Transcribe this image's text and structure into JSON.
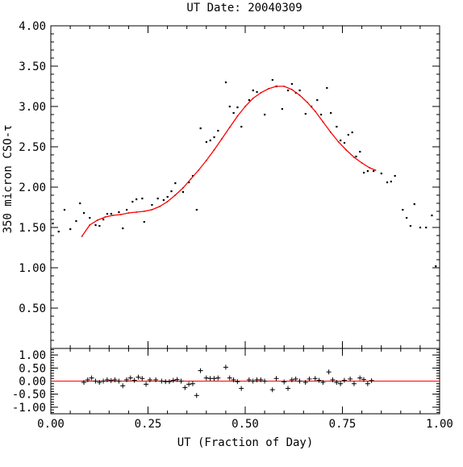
{
  "chart_data": [
    {
      "type": "scatter",
      "title": "UT Date: 20040309",
      "xlabel": "",
      "ylabel": "350 micron CSO-τ",
      "xlim": [
        0.0,
        1.0
      ],
      "ylim": [
        0.0,
        4.0
      ],
      "y_ticks": [
        "0.50",
        "1.00",
        "1.50",
        "2.00",
        "2.50",
        "3.00",
        "3.50",
        "4.00"
      ],
      "grid": false,
      "colors": {
        "points": "#000000",
        "fit": "#ff0000"
      },
      "series": [
        {
          "kind": "points",
          "x": [
            0.005,
            0.02,
            0.035,
            0.05,
            0.065,
            0.075,
            0.085,
            0.1,
            0.115,
            0.125,
            0.135,
            0.145,
            0.155,
            0.175,
            0.185,
            0.195,
            0.21,
            0.22,
            0.235,
            0.24,
            0.26,
            0.275,
            0.29,
            0.3,
            0.31,
            0.32,
            0.34,
            0.355,
            0.365,
            0.375,
            0.385,
            0.4,
            0.41,
            0.42,
            0.43,
            0.45,
            0.46,
            0.47,
            0.48,
            0.49,
            0.51,
            0.52,
            0.53,
            0.55,
            0.57,
            0.58,
            0.595,
            0.61,
            0.62,
            0.63,
            0.64,
            0.655,
            0.67,
            0.685,
            0.695,
            0.71,
            0.72,
            0.735,
            0.745,
            0.755,
            0.765,
            0.775,
            0.785,
            0.795,
            0.805,
            0.815,
            0.83,
            0.85,
            0.865,
            0.875,
            0.885,
            0.905,
            0.915,
            0.925,
            0.935,
            0.95,
            0.965,
            0.98,
            0.99
          ],
          "y": [
            1.55,
            1.45,
            1.72,
            1.48,
            1.58,
            1.8,
            1.68,
            1.62,
            1.53,
            1.52,
            1.6,
            1.67,
            1.67,
            1.69,
            1.49,
            1.72,
            1.82,
            1.85,
            1.86,
            1.57,
            1.78,
            1.86,
            1.84,
            1.88,
            1.95,
            2.05,
            1.94,
            2.06,
            2.14,
            1.72,
            2.73,
            2.56,
            2.58,
            2.62,
            2.7,
            3.3,
            3.0,
            2.92,
            2.99,
            2.75,
            3.08,
            3.2,
            3.18,
            2.9,
            3.33,
            3.25,
            2.97,
            3.2,
            3.28,
            3.17,
            3.2,
            2.91,
            3.0,
            3.08,
            2.9,
            3.23,
            2.92,
            2.75,
            2.58,
            2.55,
            2.65,
            2.68,
            2.38,
            2.44,
            2.18,
            2.2,
            2.2,
            2.17,
            2.06,
            2.07,
            2.14,
            1.72,
            1.62,
            1.52,
            1.79,
            1.5,
            1.5,
            1.65,
            1.02
          ]
        },
        {
          "kind": "fit-line",
          "x": [
            0.08,
            0.1,
            0.12,
            0.14,
            0.16,
            0.18,
            0.2,
            0.22,
            0.24,
            0.26,
            0.28,
            0.3,
            0.32,
            0.34,
            0.36,
            0.38,
            0.4,
            0.42,
            0.44,
            0.46,
            0.48,
            0.5,
            0.52,
            0.54,
            0.56,
            0.58,
            0.6,
            0.62,
            0.64,
            0.66,
            0.68,
            0.7,
            0.72,
            0.74,
            0.76,
            0.78,
            0.8,
            0.82,
            0.835
          ],
          "y": [
            1.39,
            1.53,
            1.59,
            1.63,
            1.65,
            1.66,
            1.68,
            1.69,
            1.7,
            1.72,
            1.76,
            1.82,
            1.9,
            1.99,
            2.1,
            2.21,
            2.33,
            2.46,
            2.6,
            2.74,
            2.88,
            3.0,
            3.1,
            3.17,
            3.22,
            3.25,
            3.25,
            3.21,
            3.14,
            3.05,
            2.94,
            2.81,
            2.68,
            2.56,
            2.46,
            2.37,
            2.3,
            2.24,
            2.21
          ]
        }
      ]
    },
    {
      "type": "scatter",
      "title": "",
      "xlabel": "UT (Fraction of Day)",
      "ylabel": "",
      "xlim": [
        0.0,
        1.0
      ],
      "ylim": [
        -1.25,
        1.25
      ],
      "x_ticks": [
        "0.00",
        "0.25",
        "0.50",
        "0.75",
        "1.00"
      ],
      "y_ticks": [
        "-1.00",
        "-0.50",
        "0.00",
        "0.50",
        "1.00"
      ],
      "grid": false,
      "colors": {
        "points": "#000000",
        "zero_line": "#ff0000"
      },
      "series": [
        {
          "kind": "residuals",
          "x": [
            0.085,
            0.095,
            0.105,
            0.115,
            0.125,
            0.135,
            0.145,
            0.155,
            0.165,
            0.175,
            0.185,
            0.195,
            0.205,
            0.215,
            0.225,
            0.235,
            0.245,
            0.255,
            0.27,
            0.285,
            0.295,
            0.305,
            0.315,
            0.325,
            0.335,
            0.345,
            0.355,
            0.365,
            0.375,
            0.385,
            0.4,
            0.41,
            0.42,
            0.43,
            0.45,
            0.46,
            0.47,
            0.48,
            0.49,
            0.51,
            0.52,
            0.53,
            0.54,
            0.55,
            0.57,
            0.58,
            0.6,
            0.61,
            0.62,
            0.63,
            0.64,
            0.655,
            0.665,
            0.68,
            0.69,
            0.7,
            0.715,
            0.725,
            0.735,
            0.745,
            0.755,
            0.77,
            0.78,
            0.795,
            0.805,
            0.815,
            0.825
          ],
          "y": [
            -0.05,
            0.05,
            0.12,
            0.0,
            -0.05,
            0.0,
            0.05,
            0.02,
            0.05,
            0.0,
            -0.18,
            0.05,
            0.12,
            0.03,
            0.15,
            0.1,
            -0.12,
            0.05,
            0.05,
            0.0,
            -0.02,
            -0.02,
            0.03,
            0.06,
            0.0,
            -0.25,
            -0.12,
            -0.1,
            -0.55,
            0.4,
            0.12,
            0.1,
            0.1,
            0.12,
            0.53,
            0.12,
            0.05,
            -0.02,
            -0.28,
            0.05,
            0.0,
            0.05,
            0.05,
            0.0,
            -0.33,
            0.1,
            -0.03,
            -0.28,
            0.05,
            0.08,
            0.0,
            -0.05,
            0.08,
            0.1,
            0.03,
            -0.05,
            0.35,
            0.05,
            -0.05,
            -0.1,
            0.03,
            0.08,
            -0.1,
            0.12,
            0.06,
            -0.1,
            0.02
          ]
        },
        {
          "kind": "zero-line",
          "x": [
            0.0,
            1.0
          ],
          "y": [
            0.0,
            0.0
          ]
        }
      ]
    }
  ]
}
